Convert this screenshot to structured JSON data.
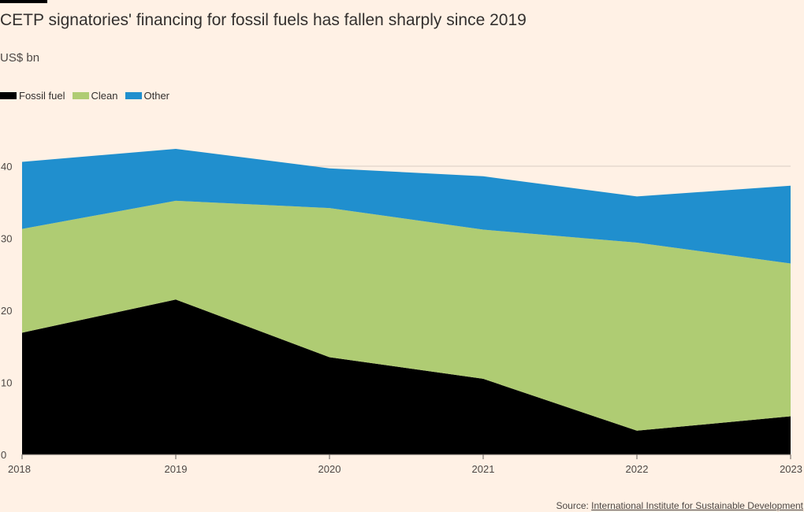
{
  "header": {
    "title": "CETP signatories' financing for fossil fuels has fallen sharply since 2019",
    "subtitle": "US$ bn"
  },
  "legend": [
    {
      "label": "Fossil fuel",
      "color": "#000000"
    },
    {
      "label": "Clean",
      "color": "#afcc73"
    },
    {
      "label": "Other",
      "color": "#208fce"
    }
  ],
  "source": {
    "prefix": "Source: ",
    "link_text": "International Institute for Sustainable Development"
  },
  "chart_data": {
    "type": "area",
    "stacked": true,
    "x": [
      "2018",
      "2019",
      "2020",
      "2021",
      "2022",
      "2023"
    ],
    "series": [
      {
        "name": "Fossil fuel",
        "color": "#000000",
        "values": [
          16.9,
          21.5,
          13.5,
          10.5,
          3.3,
          5.3
        ]
      },
      {
        "name": "Clean",
        "color": "#afcc73",
        "values": [
          14.4,
          13.7,
          20.7,
          20.7,
          26.1,
          21.2
        ]
      },
      {
        "name": "Other",
        "color": "#208fce",
        "values": [
          9.3,
          7.2,
          5.5,
          7.4,
          6.4,
          10.8
        ]
      }
    ],
    "yticks": [
      0,
      10,
      20,
      30,
      40
    ],
    "ylim": [
      0,
      40
    ],
    "grid": true
  }
}
